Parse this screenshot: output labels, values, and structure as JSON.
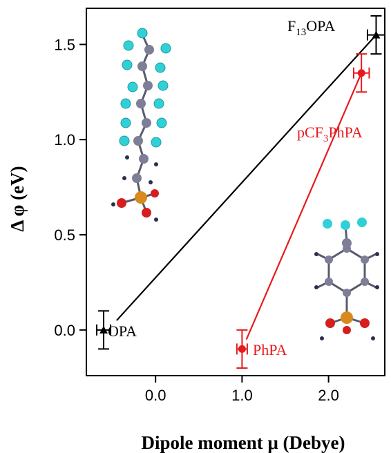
{
  "chart_data": {
    "type": "scatter",
    "xlabel": "Dipole moment μ (Debye)",
    "ylabel": "Δ φ  (eV)",
    "xlim": [
      -0.8,
      2.65
    ],
    "ylim": [
      -0.24,
      1.69
    ],
    "xticks": [
      {
        "v": 0,
        "label": "0.0"
      },
      {
        "v": 1,
        "label": "1.0"
      },
      {
        "v": 2,
        "label": "2.0"
      }
    ],
    "yticks": [
      {
        "v": 0,
        "label": "0.0"
      },
      {
        "v": 0.5,
        "label": "0.5"
      },
      {
        "v": 1,
        "label": "1.0"
      },
      {
        "v": 1.5,
        "label": "1.5"
      }
    ],
    "grid": false,
    "colors": {
      "black_series": "#000000",
      "red_series": "#e8191c"
    },
    "series": [
      {
        "key": "black",
        "color": "#000000",
        "marker": "triangle",
        "points": [
          {
            "label_text": "OPA",
            "x": -0.6,
            "y": 0.0,
            "xerr": 0.08,
            "yerr": 0.1
          },
          {
            "label_text": "F13OPA",
            "x": 2.55,
            "y": 1.55,
            "xerr": 0.1,
            "yerr": 0.1
          }
        ],
        "fit_line": {
          "x": [
            -0.45,
            2.55
          ],
          "y": [
            0.05,
            1.55
          ]
        }
      },
      {
        "key": "red",
        "color": "#e8191c",
        "marker": "circle",
        "points": [
          {
            "label_text": "PhPA",
            "x": 1.0,
            "y": -0.1,
            "xerr": 0.06,
            "yerr": 0.1
          },
          {
            "label_text": "pCF3PhPA",
            "x": 2.38,
            "y": 1.35,
            "xerr": 0.09,
            "yerr": 0.1
          }
        ],
        "fit_line": {
          "x": [
            1.05,
            2.38
          ],
          "y": [
            -0.05,
            1.35
          ]
        }
      }
    ]
  },
  "labels": {
    "opa": "OPA",
    "f13opa_main": "F",
    "f13opa_sub": "13",
    "f13opa_tail": "OPA",
    "pcf3_main": "pCF",
    "pcf3_sub": "3",
    "pcf3_tail": "PhPA",
    "phpa": "PhPA"
  }
}
